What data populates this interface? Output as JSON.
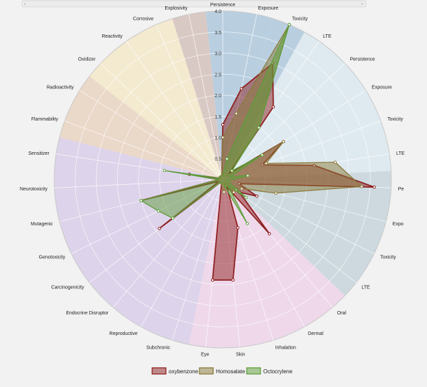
{
  "scrollbar": {
    "left_arrow": "‹",
    "right_arrow": "›"
  },
  "colors": {
    "background": "#f2f2f2",
    "sector_blue": "#b9cfe0",
    "sector_lightblue": "#dfeaf0",
    "sector_teal": "#cdd9df",
    "sector_pink": "#eed8ea",
    "sector_lavender": "#ddd3ea",
    "sector_peach": "#ead8c9",
    "sector_cream": "#f3ead0",
    "sector_taupe": "#d9c9c4",
    "oxybenzone": "#8e1f1f",
    "homosalate": "#8a7a3a",
    "octocrylene": "#5e9e3a"
  },
  "chart_data": {
    "type": "radar",
    "title": "",
    "rmax": 4.0,
    "ticks": [
      "0.5",
      "1.0",
      "1.5",
      "2.0",
      "2.5",
      "3.0",
      "3.5",
      "4.0"
    ],
    "axes": [
      "Persistence",
      "Exposure",
      "Toxicity",
      "LTE",
      "Persistence",
      "Exposure",
      "Toxicity",
      "LTE",
      "Pe",
      "Expo",
      "Toxicity",
      "LTE",
      "Oral",
      "Dermal",
      "Inhalation",
      "Skin",
      "Eye",
      "Subchronic",
      "Reproductive",
      "Endocrine Disruptor",
      "Carcinogenicity",
      "Genotoxicity",
      "Mutagenic",
      "Neurotoxicity",
      "Sensitizer",
      "Flammability",
      "Radioactivity",
      "Oxidizer",
      "Reactivity",
      "Corrosive",
      "Explosivity"
    ],
    "sectors": [
      {
        "from": 0,
        "to": 2,
        "color": "sector_blue"
      },
      {
        "from": 2,
        "to": 3,
        "color": "sector_blue"
      },
      {
        "from": 3,
        "to": 8,
        "color": "sector_lightblue"
      },
      {
        "from": 8,
        "to": 12,
        "color": "sector_teal"
      },
      {
        "from": 12,
        "to": 17,
        "color": "sector_pink"
      },
      {
        "from": 17,
        "to": 25,
        "color": "sector_lavender"
      },
      {
        "from": 25,
        "to": 27,
        "color": "sector_peach"
      },
      {
        "from": 27,
        "to": 30,
        "color": "sector_cream"
      },
      {
        "from": 30,
        "to": 31,
        "color": "sector_taupe"
      }
    ],
    "series": [
      {
        "name": "oxybenzone",
        "color_key": "oxybenzone",
        "values": [
          1.3,
          2.2,
          3.0,
          2.1,
          0.2,
          1.7,
          1.0,
          2.2,
          3.6,
          0.4,
          0.9,
          0.5,
          1.7,
          0.2,
          1.2,
          2.4,
          2.4,
          0.1,
          0.1,
          0.1,
          1.9,
          0.1,
          2.0,
          0.1,
          0.8,
          0.1,
          0.1,
          0.1,
          0.1,
          0.1,
          0.1
        ]
      },
      {
        "name": "Homosalate",
        "color_key": "homosalate",
        "values": [
          1.0,
          1.6,
          4.0,
          1.5,
          0.1,
          1.7,
          1.1,
          2.7,
          3.3,
          1.3,
          0.5,
          0.4,
          0.4,
          0.1,
          0.2,
          0.3,
          0.2,
          0.1,
          0.1,
          0.1,
          0.1,
          0.1,
          0.1,
          0.1,
          0.1,
          0.1,
          0.1,
          0.1,
          0.1,
          0.1,
          0.1
        ]
      },
      {
        "name": "Octocrylene",
        "color_key": "octocrylene",
        "values": [
          0.1,
          0.5,
          4.0,
          1.5,
          0.3,
          1.1,
          0.2,
          0.6,
          0.2,
          0.1,
          0.2,
          0.7,
          0.2,
          1.2,
          0.2,
          0.1,
          0.1,
          0.1,
          0.1,
          0.1,
          1.5,
          1.7,
          2.0,
          0.1,
          1.4,
          0.1,
          0.1,
          0.1,
          0.1,
          0.1,
          0.1
        ]
      }
    ]
  }
}
